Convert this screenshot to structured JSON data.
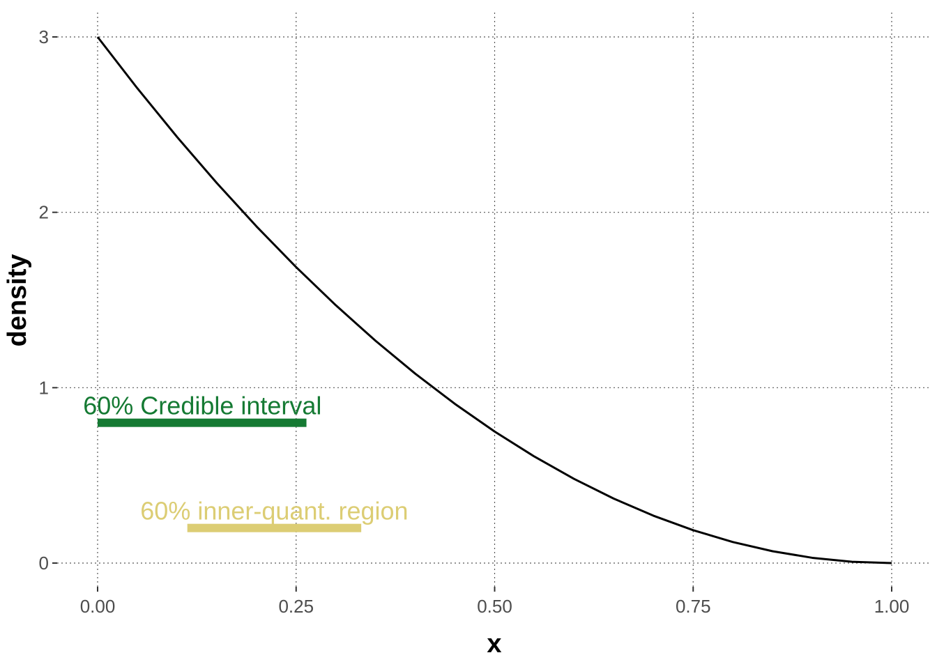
{
  "chart_data": {
    "type": "line",
    "xlabel": "x",
    "ylabel": "density",
    "xlim": [
      0,
      1
    ],
    "ylim": [
      0,
      3
    ],
    "x_ticks": [
      {
        "value": 0,
        "label": "0.00"
      },
      {
        "value": 0.25,
        "label": "0.25"
      },
      {
        "value": 0.5,
        "label": "0.50"
      },
      {
        "value": 0.75,
        "label": "0.75"
      },
      {
        "value": 1,
        "label": "1.00"
      }
    ],
    "y_ticks": [
      {
        "value": 0,
        "label": "0"
      },
      {
        "value": 1,
        "label": "1"
      },
      {
        "value": 2,
        "label": "2"
      },
      {
        "value": 3,
        "label": "3"
      }
    ],
    "grid": true,
    "series": [
      {
        "color": "#000000",
        "x": [
          0,
          0.05,
          0.1,
          0.15,
          0.2,
          0.25,
          0.3,
          0.35,
          0.4,
          0.45,
          0.5,
          0.55,
          0.6,
          0.65,
          0.7,
          0.75,
          0.8,
          0.85,
          0.9,
          0.95,
          1
        ],
        "y": [
          3,
          2.7075,
          2.43,
          2.1675,
          1.92,
          1.6875,
          1.47,
          1.2675,
          1.08,
          0.9075,
          0.75,
          0.6075,
          0.48,
          0.3675,
          0.27,
          0.1875,
          0.12,
          0.0675,
          0.03,
          0.0075,
          0
        ]
      }
    ],
    "intervals": [
      {
        "label": "60% Credible interval",
        "color": "#157a33",
        "x_start": 0,
        "x_end": 0.263,
        "y": 0.8,
        "label_x": 0.132,
        "label_y": 0.9
      },
      {
        "label": "60% inner-quant. region",
        "color": "#dccd74",
        "x_start": 0.113,
        "x_end": 0.332,
        "y": 0.2,
        "label_x": 0.2225,
        "label_y": 0.3
      }
    ]
  }
}
